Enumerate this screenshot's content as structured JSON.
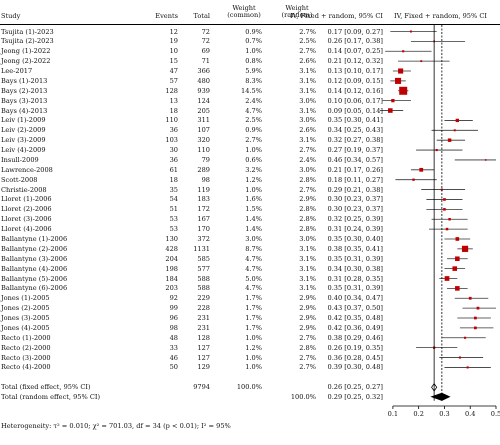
{
  "headers": {
    "study": "Study",
    "events": "Events",
    "total": "Total",
    "weight_common": "Weight\n(common)",
    "weight_random": "Weight\n(random)",
    "ci_col": "IV, Fixed + random, 95% CI",
    "plot_col": "IV, Fixed + random, 95% CI"
  },
  "chart_data": {
    "type": "forest",
    "xlim": [
      0,
      0.5
    ],
    "ticks": [
      0.1,
      0.2,
      0.3,
      0.4,
      0.5
    ],
    "tick_labels": [
      "0.1",
      "0.2",
      "0.3",
      "0.4",
      "0.5"
    ],
    "fixed_line": 0.26,
    "random_line": 0.29,
    "square_color": "#c00000",
    "studies": [
      {
        "study": "Tsujita (1)-2023",
        "events": "12",
        "total": "72",
        "w_common": "0.9%",
        "w_random": "2.7%",
        "est": 0.17,
        "lo": 0.09,
        "hi": 0.27,
        "ci_text": "0.17 [0.09, 0.27]"
      },
      {
        "study": "Tsujita (2)-2023",
        "events": "19",
        "total": "72",
        "w_common": "0.7%",
        "w_random": "2.5%",
        "est": 0.26,
        "lo": 0.17,
        "hi": 0.38,
        "ci_text": "0.26 [0.17, 0.38]"
      },
      {
        "study": "Jeong (1)-2022",
        "events": "10",
        "total": "69",
        "w_common": "1.0%",
        "w_random": "2.7%",
        "est": 0.14,
        "lo": 0.07,
        "hi": 0.25,
        "ci_text": "0.14 [0.07, 0.25]"
      },
      {
        "study": "Jeong (2)-2022",
        "events": "15",
        "total": "71",
        "w_common": "0.8%",
        "w_random": "2.6%",
        "est": 0.21,
        "lo": 0.12,
        "hi": 0.32,
        "ci_text": "0.21 [0.12, 0.32]"
      },
      {
        "study": "Lee-2017",
        "events": "47",
        "total": "366",
        "w_common": "5.9%",
        "w_random": "3.1%",
        "est": 0.13,
        "lo": 0.1,
        "hi": 0.17,
        "ci_text": "0.13 [0.10, 0.17]"
      },
      {
        "study": "Bays (1)-2013",
        "events": "57",
        "total": "480",
        "w_common": "8.3%",
        "w_random": "3.1%",
        "est": 0.12,
        "lo": 0.09,
        "hi": 0.15,
        "ci_text": "0.12 [0.09, 0.15]"
      },
      {
        "study": "Bays (2)-2013",
        "events": "128",
        "total": "939",
        "w_common": "14.5%",
        "w_random": "3.1%",
        "est": 0.14,
        "lo": 0.12,
        "hi": 0.16,
        "ci_text": "0.14 [0.12, 0.16]"
      },
      {
        "study": "Bays (3)-2013",
        "events": "13",
        "total": "124",
        "w_common": "2.4%",
        "w_random": "3.0%",
        "est": 0.1,
        "lo": 0.06,
        "hi": 0.17,
        "ci_text": "0.10 [0.06, 0.17]"
      },
      {
        "study": "Bays (4)-2013",
        "events": "18",
        "total": "205",
        "w_common": "4.7%",
        "w_random": "3.1%",
        "est": 0.09,
        "lo": 0.05,
        "hi": 0.14,
        "ci_text": "0.09 [0.05, 0.14]"
      },
      {
        "study": "Leiv (1)-2009",
        "events": "110",
        "total": "311",
        "w_common": "2.5%",
        "w_random": "3.0%",
        "est": 0.35,
        "lo": 0.3,
        "hi": 0.41,
        "ci_text": "0.35 [0.30, 0.41]"
      },
      {
        "study": "Leiv (2)-2009",
        "events": "36",
        "total": "107",
        "w_common": "0.9%",
        "w_random": "2.6%",
        "est": 0.34,
        "lo": 0.25,
        "hi": 0.43,
        "ci_text": "0.34 [0.25, 0.43]"
      },
      {
        "study": "Leiv (3)-2009",
        "events": "103",
        "total": "320",
        "w_common": "2.7%",
        "w_random": "3.1%",
        "est": 0.32,
        "lo": 0.27,
        "hi": 0.38,
        "ci_text": "0.32 [0.27, 0.38]"
      },
      {
        "study": "Leiv (4)-2009",
        "events": "30",
        "total": "110",
        "w_common": "1.0%",
        "w_random": "2.7%",
        "est": 0.27,
        "lo": 0.19,
        "hi": 0.37,
        "ci_text": "0.27 [0.19, 0.37]"
      },
      {
        "study": "Insull-2009",
        "events": "36",
        "total": "79",
        "w_common": "0.6%",
        "w_random": "2.4%",
        "est": 0.46,
        "lo": 0.34,
        "hi": 0.57,
        "ci_text": "0.46 [0.34, 0.57]"
      },
      {
        "study": "Lawrence-2008",
        "events": "61",
        "total": "289",
        "w_common": "3.2%",
        "w_random": "3.0%",
        "est": 0.21,
        "lo": 0.17,
        "hi": 0.26,
        "ci_text": "0.21 [0.17, 0.26]"
      },
      {
        "study": "Scott-2008",
        "events": "18",
        "total": "98",
        "w_common": "1.2%",
        "w_random": "2.8%",
        "est": 0.18,
        "lo": 0.11,
        "hi": 0.27,
        "ci_text": "0.18 [0.11, 0.27]"
      },
      {
        "study": "Christie-2008",
        "events": "35",
        "total": "119",
        "w_common": "1.0%",
        "w_random": "2.7%",
        "est": 0.29,
        "lo": 0.21,
        "hi": 0.38,
        "ci_text": "0.29 [0.21, 0.38]"
      },
      {
        "study": "Lloret (1)-2006",
        "events": "54",
        "total": "183",
        "w_common": "1.6%",
        "w_random": "2.9%",
        "est": 0.3,
        "lo": 0.23,
        "hi": 0.37,
        "ci_text": "0.30 [0.23, 0.37]"
      },
      {
        "study": "Lloret (2)-2006",
        "events": "51",
        "total": "172",
        "w_common": "1.5%",
        "w_random": "2.8%",
        "est": 0.3,
        "lo": 0.23,
        "hi": 0.37,
        "ci_text": "0.30 [0.23, 0.37]"
      },
      {
        "study": "Lloret (3)-2006",
        "events": "53",
        "total": "167",
        "w_common": "1.4%",
        "w_random": "2.8%",
        "est": 0.32,
        "lo": 0.25,
        "hi": 0.39,
        "ci_text": "0.32 [0.25, 0.39]"
      },
      {
        "study": "Lloret (4)-2006",
        "events": "53",
        "total": "170",
        "w_common": "1.4%",
        "w_random": "2.8%",
        "est": 0.31,
        "lo": 0.24,
        "hi": 0.39,
        "ci_text": "0.31 [0.24, 0.39]"
      },
      {
        "study": "Ballantyne (1)-2006",
        "events": "130",
        "total": "372",
        "w_common": "3.0%",
        "w_random": "3.0%",
        "est": 0.35,
        "lo": 0.3,
        "hi": 0.4,
        "ci_text": "0.35 [0.30, 0.40]"
      },
      {
        "study": "Ballantyne (2)-2006",
        "events": "428",
        "total": "1131",
        "w_common": "8.7%",
        "w_random": "3.1%",
        "est": 0.38,
        "lo": 0.35,
        "hi": 0.41,
        "ci_text": "0.38 [0.35, 0.41]"
      },
      {
        "study": "Ballantyne (3)-2006",
        "events": "204",
        "total": "585",
        "w_common": "4.7%",
        "w_random": "3.1%",
        "est": 0.35,
        "lo": 0.31,
        "hi": 0.39,
        "ci_text": "0.35 [0.31, 0.39]"
      },
      {
        "study": "Ballantyne (4)-2006",
        "events": "198",
        "total": "577",
        "w_common": "4.7%",
        "w_random": "3.1%",
        "est": 0.34,
        "lo": 0.3,
        "hi": 0.38,
        "ci_text": "0.34 [0.30, 0.38]"
      },
      {
        "study": "Ballantyne (5)-2006",
        "events": "184",
        "total": "588",
        "w_common": "5.0%",
        "w_random": "3.1%",
        "est": 0.31,
        "lo": 0.28,
        "hi": 0.35,
        "ci_text": "0.31 [0.28, 0.35]"
      },
      {
        "study": "Ballantyne (6)-2006",
        "events": "203",
        "total": "588",
        "w_common": "4.7%",
        "w_random": "3.1%",
        "est": 0.35,
        "lo": 0.31,
        "hi": 0.39,
        "ci_text": "0.35 [0.31, 0.39]"
      },
      {
        "study": "Jones (1)-2005",
        "events": "92",
        "total": "229",
        "w_common": "1.7%",
        "w_random": "2.9%",
        "est": 0.4,
        "lo": 0.34,
        "hi": 0.47,
        "ci_text": "0.40 [0.34, 0.47]"
      },
      {
        "study": "Jones (2)-2005",
        "events": "99",
        "total": "228",
        "w_common": "1.7%",
        "w_random": "2.9%",
        "est": 0.43,
        "lo": 0.37,
        "hi": 0.5,
        "ci_text": "0.43 [0.37, 0.50]"
      },
      {
        "study": "Jones (3)-2005",
        "events": "96",
        "total": "231",
        "w_common": "1.7%",
        "w_random": "2.9%",
        "est": 0.42,
        "lo": 0.35,
        "hi": 0.48,
        "ci_text": "0.42 [0.35, 0.48]"
      },
      {
        "study": "Jones (4)-2005",
        "events": "98",
        "total": "231",
        "w_common": "1.7%",
        "w_random": "2.9%",
        "est": 0.42,
        "lo": 0.36,
        "hi": 0.49,
        "ci_text": "0.42 [0.36, 0.49]"
      },
      {
        "study": "Recto (1)-2000",
        "events": "48",
        "total": "128",
        "w_common": "1.0%",
        "w_random": "2.7%",
        "est": 0.38,
        "lo": 0.29,
        "hi": 0.46,
        "ci_text": "0.38 [0.29, 0.46]"
      },
      {
        "study": "Recto (2)-2000",
        "events": "33",
        "total": "127",
        "w_common": "1.2%",
        "w_random": "2.8%",
        "est": 0.26,
        "lo": 0.19,
        "hi": 0.35,
        "ci_text": "0.26 [0.19, 0.35]"
      },
      {
        "study": "Recto (3)-2000",
        "events": "46",
        "total": "127",
        "w_common": "1.0%",
        "w_random": "2.7%",
        "est": 0.36,
        "lo": 0.28,
        "hi": 0.45,
        "ci_text": "0.36 [0.28, 0.45]"
      },
      {
        "study": "Recto (4)-2000",
        "events": "50",
        "total": "129",
        "w_common": "1.0%",
        "w_random": "2.7%",
        "est": 0.39,
        "lo": 0.3,
        "hi": 0.48,
        "ci_text": "0.39 [0.30, 0.48]"
      }
    ],
    "summaries": [
      {
        "label": "Total (fixed effect, 95% CI)",
        "total": "9794",
        "w_common": "100.0%",
        "w_random": "",
        "est": 0.26,
        "lo": 0.25,
        "hi": 0.27,
        "ci_text": "0.26 [0.25, 0.27]"
      },
      {
        "label": "Total (random effect, 95% CI)",
        "total": "",
        "w_common": "",
        "w_random": "100.0%",
        "est": 0.29,
        "lo": 0.25,
        "hi": 0.32,
        "ci_text": "0.29 [0.25, 0.32]"
      }
    ],
    "heterogeneity": "Heterogeneity: τ² = 0.010; χ² = 701.03, df = 34 (p < 0.01); I² = 95%"
  }
}
